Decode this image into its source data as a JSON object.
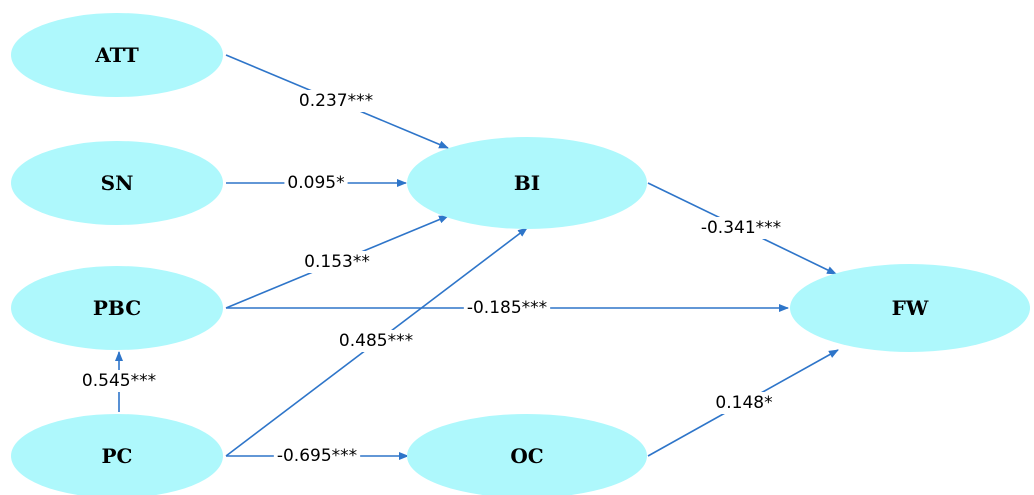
{
  "colors": {
    "node_fill": "#aef8fc",
    "edge": "#2e75c9",
    "text": "#000000",
    "background": "#ffffff"
  },
  "nodes": [
    {
      "id": "ATT",
      "label": "ATT"
    },
    {
      "id": "SN",
      "label": "SN"
    },
    {
      "id": "PBC",
      "label": "PBC"
    },
    {
      "id": "PC",
      "label": "PC"
    },
    {
      "id": "BI",
      "label": "BI"
    },
    {
      "id": "OC",
      "label": "OC"
    },
    {
      "id": "FW",
      "label": "FW"
    }
  ],
  "edges": [
    {
      "from": "ATT",
      "to": "BI",
      "label": "0.237***"
    },
    {
      "from": "SN",
      "to": "BI",
      "label": "0.095*"
    },
    {
      "from": "PBC",
      "to": "BI",
      "label": "0.153**"
    },
    {
      "from": "PC",
      "to": "BI",
      "label": "0.485***"
    },
    {
      "from": "BI",
      "to": "FW",
      "label": "-0.341***"
    },
    {
      "from": "PBC",
      "to": "FW",
      "label": "-0.185***"
    },
    {
      "from": "PC",
      "to": "PBC",
      "label": "0.545***"
    },
    {
      "from": "PC",
      "to": "OC",
      "label": "-0.695***"
    },
    {
      "from": "OC",
      "to": "FW",
      "label": "0.148*"
    }
  ]
}
